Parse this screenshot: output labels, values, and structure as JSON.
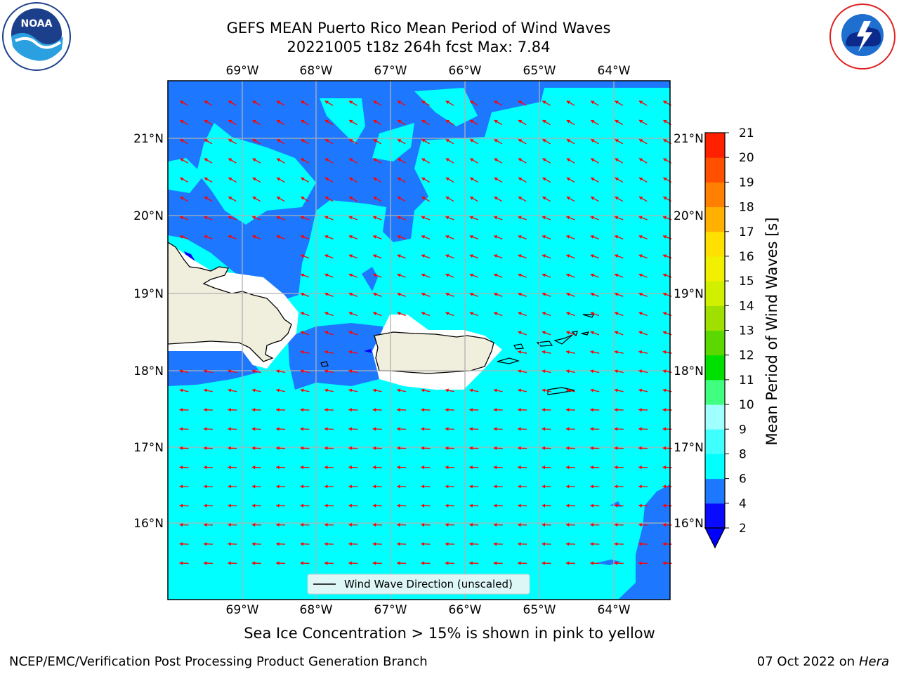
{
  "title_line1": "GEFS MEAN Puerto Rico Mean Period of Wind Waves",
  "title_line2": "20221005 t18z 264h fcst   Max: 7.84",
  "lon_labels": [
    "69°W",
    "68°W",
    "67°W",
    "66°W",
    "65°W",
    "64°W"
  ],
  "lat_labels": [
    "21°N",
    "20°N",
    "19°N",
    "18°N",
    "17°N",
    "16°N"
  ],
  "colorbar": {
    "label": "Mean Period of Wind Waves [s]",
    "ticks": [
      "2",
      "4",
      "6",
      "8",
      "9",
      "10",
      "11",
      "12",
      "13",
      "14",
      "15",
      "16",
      "17",
      "18",
      "19",
      "20",
      "21"
    ],
    "colors": [
      "#0a0aff",
      "#1e78ff",
      "#00ffff",
      "#40ffff",
      "#a0ffff",
      "#40ff80",
      "#00e000",
      "#5ad800",
      "#a0e000",
      "#d0f000",
      "#f0f000",
      "#ffe000",
      "#ffb000",
      "#ff8000",
      "#ff5000",
      "#ff2000",
      "#ff0000"
    ],
    "extend_color": "#0000ff"
  },
  "legend": "Wind Wave Direction (unscaled)",
  "arrow_color": "#ff0000",
  "subtitle": "Sea Ice Concentration > 15% is shown in pink to yellow",
  "footer_left": "NCEP/EMC/Verification Post Processing Product Generation Branch",
  "footer_date": "07 Oct 2022 on",
  "footer_machine": "Hera",
  "logos": [
    "noaa-logo",
    "nws-logo"
  ]
}
